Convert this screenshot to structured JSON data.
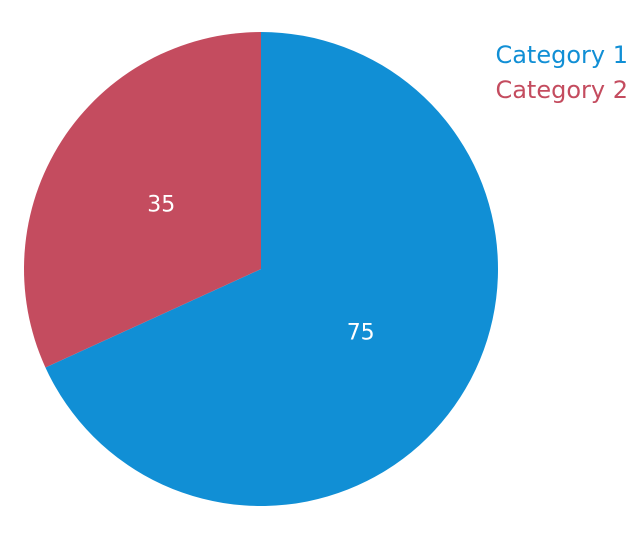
{
  "chart_data": {
    "type": "pie",
    "categories": [
      "Category 1",
      "Category 2"
    ],
    "values": [
      75,
      35
    ],
    "colors": [
      "#118fd5",
      "#c44c5f"
    ],
    "legend": "top-right",
    "start": "top",
    "direction": "clockwise"
  }
}
